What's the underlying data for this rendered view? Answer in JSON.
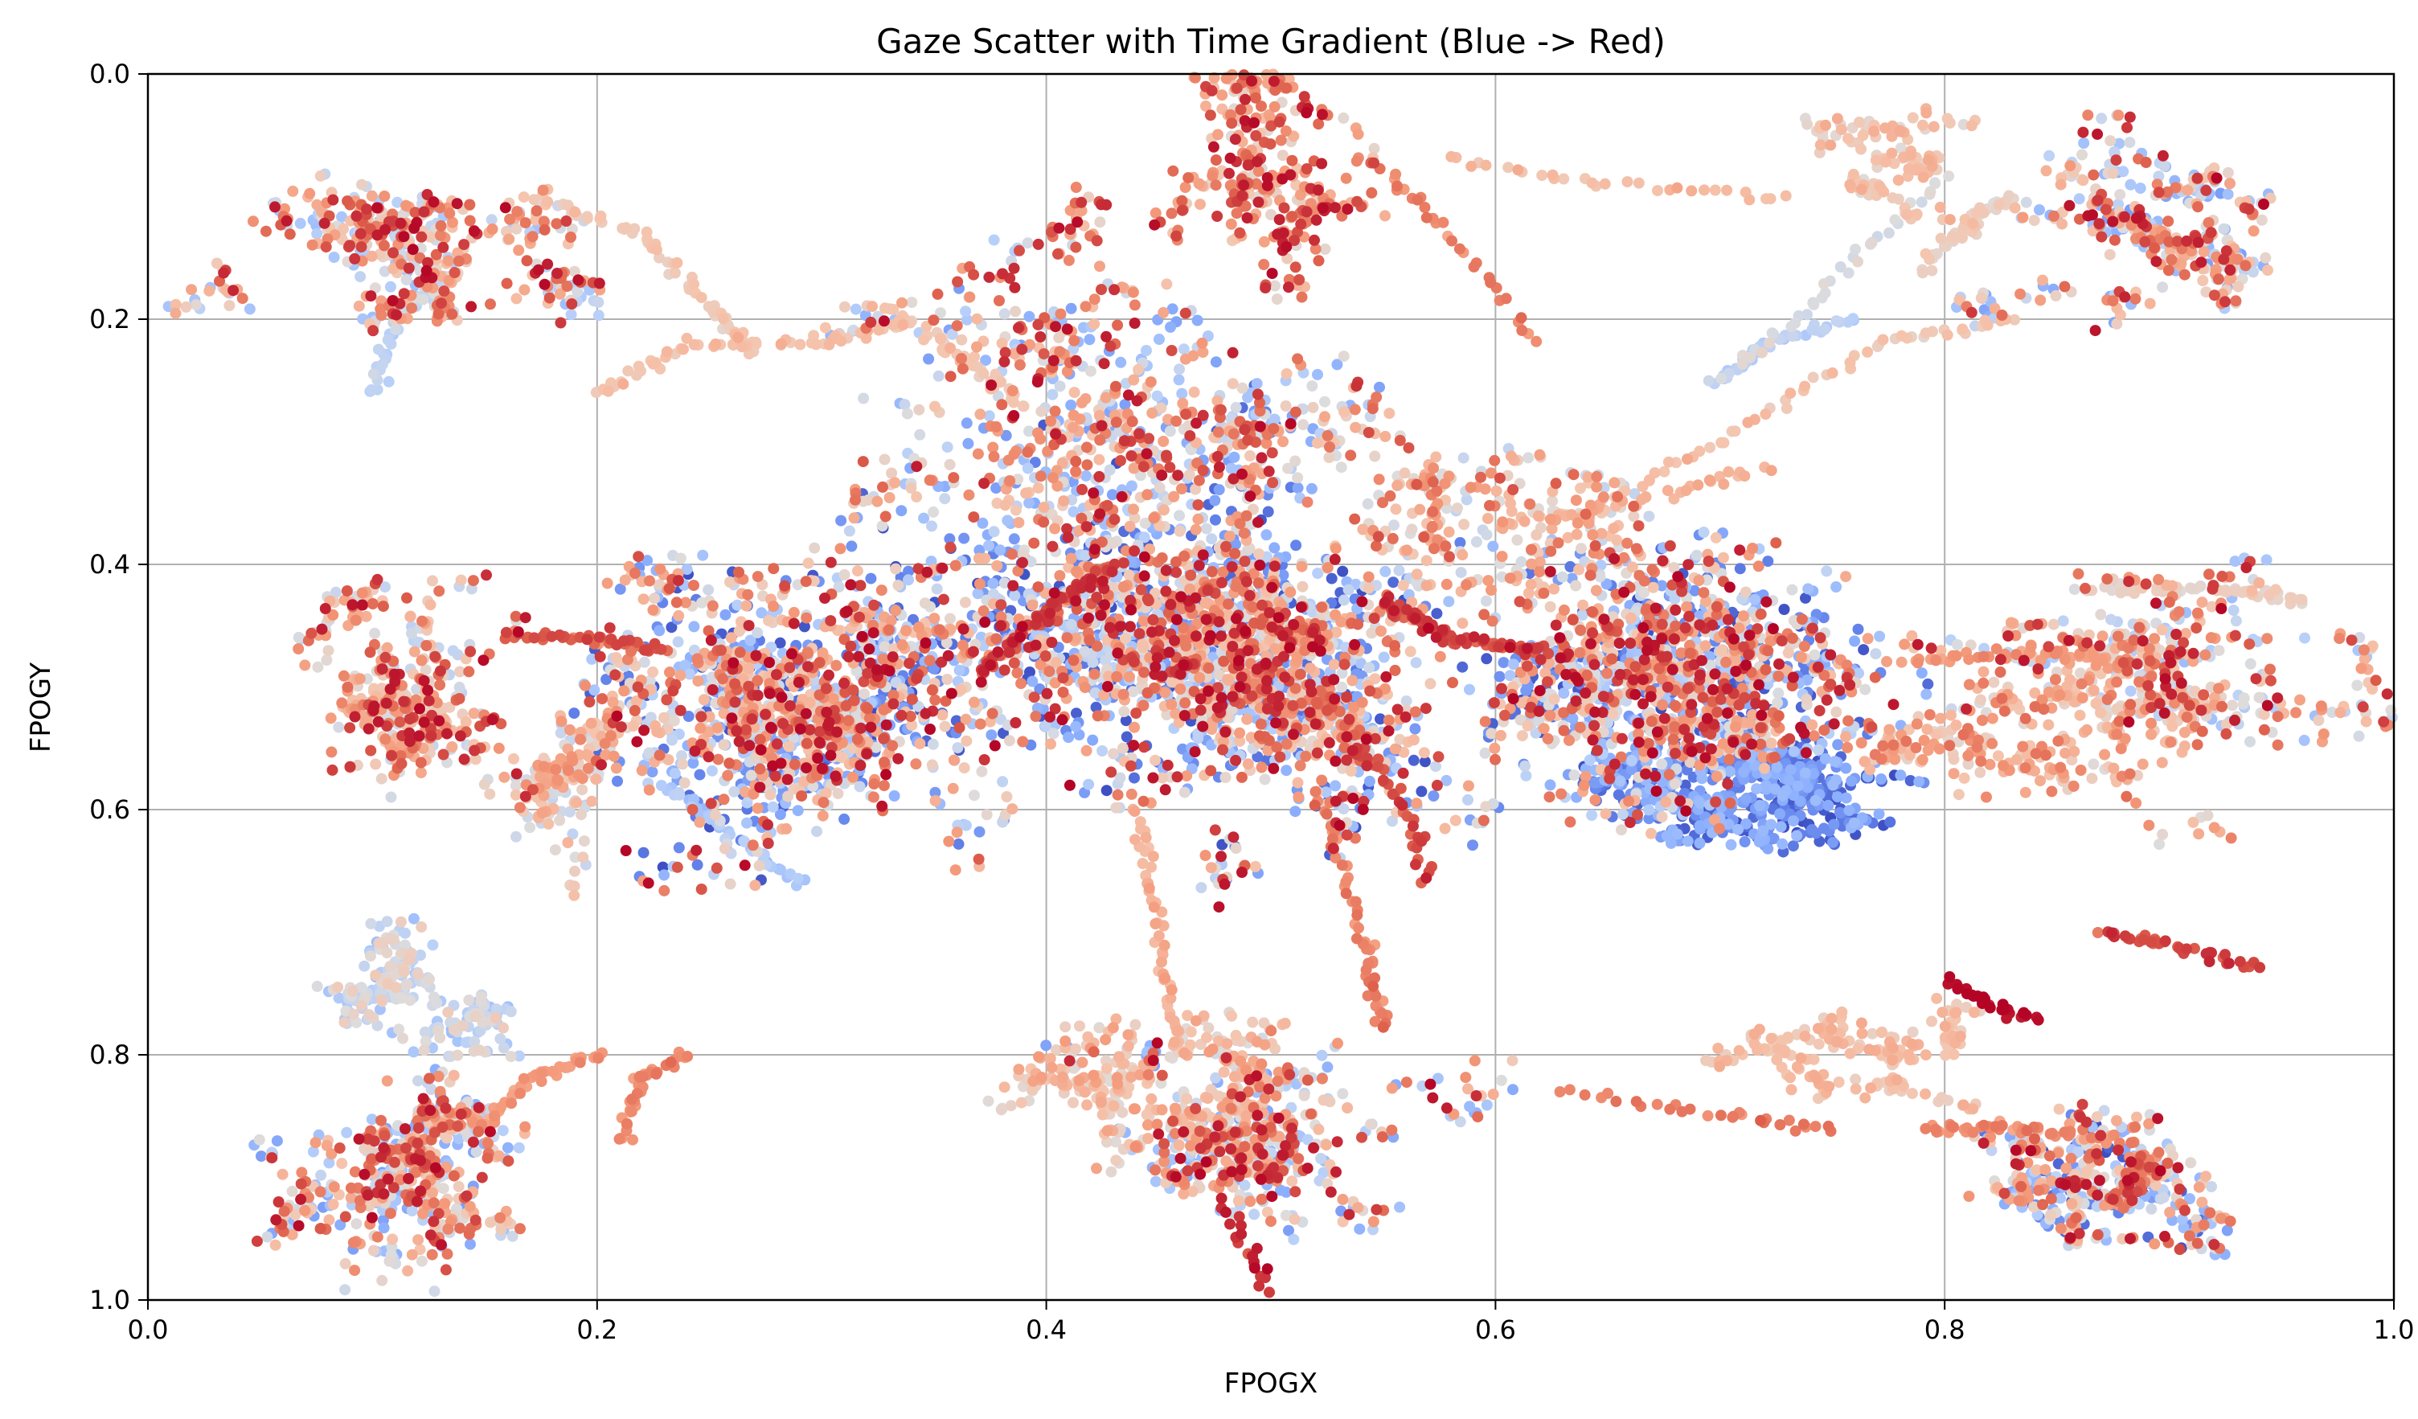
{
  "chart_data": {
    "type": "scatter",
    "title": "Gaze Scatter with Time Gradient (Blue -> Red)",
    "xlabel": "FPOGX",
    "ylabel": "FPOGY",
    "xlim": [
      0.0,
      1.0
    ],
    "ylim": [
      0.0,
      1.0
    ],
    "y_inverted": true,
    "grid": true,
    "colormap": "coolwarm",
    "xticks": [
      "0.0",
      "0.2",
      "0.4",
      "0.6",
      "0.8",
      "1.0"
    ],
    "yticks": [
      "0.0",
      "0.2",
      "0.4",
      "0.6",
      "0.8",
      "1.0"
    ],
    "colors": {
      "early": "#3b4cc0",
      "middle": "#dddcdc",
      "late": "#b40426",
      "grid": "#b0b0b0"
    },
    "clusters": [
      {
        "x": 0.12,
        "y": 0.14,
        "sx": 0.035,
        "sy": 0.04,
        "n": 420,
        "t": [
          0.3,
          1.0
        ]
      },
      {
        "x": 0.49,
        "y": 0.08,
        "sx": 0.03,
        "sy": 0.05,
        "n": 380,
        "t": [
          0.5,
          1.0
        ]
      },
      {
        "x": 0.89,
        "y": 0.13,
        "sx": 0.03,
        "sy": 0.04,
        "n": 360,
        "t": [
          0.2,
          1.0
        ]
      },
      {
        "x": 0.11,
        "y": 0.5,
        "sx": 0.03,
        "sy": 0.05,
        "n": 380,
        "t": [
          0.4,
          1.0
        ]
      },
      {
        "x": 0.29,
        "y": 0.52,
        "sx": 0.045,
        "sy": 0.06,
        "n": 1400,
        "t": [
          0.0,
          1.0
        ]
      },
      {
        "x": 0.43,
        "y": 0.45,
        "sx": 0.05,
        "sy": 0.07,
        "n": 1100,
        "t": [
          0.0,
          1.0
        ]
      },
      {
        "x": 0.5,
        "y": 0.49,
        "sx": 0.035,
        "sy": 0.06,
        "n": 1200,
        "t": [
          0.0,
          1.0
        ]
      },
      {
        "x": 0.69,
        "y": 0.49,
        "sx": 0.05,
        "sy": 0.05,
        "n": 1400,
        "t": [
          0.0,
          1.0
        ]
      },
      {
        "x": 0.9,
        "y": 0.49,
        "sx": 0.04,
        "sy": 0.04,
        "n": 420,
        "t": [
          0.3,
          1.0
        ]
      },
      {
        "x": 0.12,
        "y": 0.89,
        "sx": 0.03,
        "sy": 0.05,
        "n": 520,
        "t": [
          0.2,
          1.0
        ]
      },
      {
        "x": 0.49,
        "y": 0.86,
        "sx": 0.04,
        "sy": 0.04,
        "n": 500,
        "t": [
          0.2,
          1.0
        ]
      },
      {
        "x": 0.88,
        "y": 0.89,
        "sx": 0.04,
        "sy": 0.03,
        "n": 460,
        "t": [
          0.0,
          1.0
        ]
      },
      {
        "x": 0.44,
        "y": 0.28,
        "sx": 0.06,
        "sy": 0.06,
        "n": 650,
        "t": [
          0.2,
          1.0
        ]
      },
      {
        "x": 0.18,
        "y": 0.6,
        "sx": 0.02,
        "sy": 0.05,
        "n": 160,
        "t": [
          0.4,
          0.8
        ]
      },
      {
        "x": 0.12,
        "y": 0.78,
        "sx": 0.03,
        "sy": 0.04,
        "n": 220,
        "t": [
          0.3,
          0.6
        ]
      },
      {
        "x": 0.76,
        "y": 0.08,
        "sx": 0.025,
        "sy": 0.03,
        "n": 140,
        "t": [
          0.5,
          0.7
        ]
      },
      {
        "x": 0.45,
        "y": 0.83,
        "sx": 0.04,
        "sy": 0.04,
        "n": 260,
        "t": [
          0.5,
          0.75
        ]
      },
      {
        "x": 0.77,
        "y": 0.81,
        "sx": 0.03,
        "sy": 0.03,
        "n": 180,
        "t": [
          0.55,
          0.7
        ]
      },
      {
        "x": 0.82,
        "y": 0.55,
        "sx": 0.04,
        "sy": 0.04,
        "n": 260,
        "t": [
          0.5,
          0.85
        ]
      },
      {
        "x": 0.6,
        "y": 0.38,
        "sx": 0.04,
        "sy": 0.05,
        "n": 300,
        "t": [
          0.4,
          0.9
        ]
      },
      {
        "x": 0.71,
        "y": 0.58,
        "sx": 0.04,
        "sy": 0.025,
        "n": 500,
        "t": [
          0.0,
          0.3
        ]
      }
    ],
    "trails": [
      {
        "points": [
          [
            0.17,
            0.1
          ],
          [
            0.22,
            0.13
          ],
          [
            0.25,
            0.19
          ],
          [
            0.27,
            0.23
          ]
        ],
        "n": 60,
        "t": 0.6
      },
      {
        "points": [
          [
            0.55,
            0.08
          ],
          [
            0.58,
            0.13
          ],
          [
            0.62,
            0.22
          ]
        ],
        "n": 30,
        "t": 0.8
      },
      {
        "points": [
          [
            0.58,
            0.07
          ],
          [
            0.65,
            0.09
          ],
          [
            0.73,
            0.1
          ]
        ],
        "n": 30,
        "t": 0.65
      },
      {
        "points": [
          [
            0.8,
            0.08
          ],
          [
            0.75,
            0.17
          ],
          [
            0.7,
            0.25
          ]
        ],
        "n": 40,
        "t": 0.5
      },
      {
        "points": [
          [
            0.83,
            0.2
          ],
          [
            0.77,
            0.22
          ],
          [
            0.7,
            0.3
          ],
          [
            0.64,
            0.36
          ]
        ],
        "n": 60,
        "t": 0.62
      },
      {
        "points": [
          [
            0.6,
            0.37
          ],
          [
            0.66,
            0.35
          ],
          [
            0.72,
            0.32
          ]
        ],
        "n": 40,
        "t": 0.68
      },
      {
        "points": [
          [
            0.33,
            0.19
          ],
          [
            0.36,
            0.23
          ],
          [
            0.39,
            0.27
          ]
        ],
        "n": 40,
        "t": 0.6
      },
      {
        "points": [
          [
            0.2,
            0.26
          ],
          [
            0.24,
            0.22
          ],
          [
            0.3,
            0.22
          ],
          [
            0.34,
            0.2
          ]
        ],
        "n": 60,
        "t": 0.62
      },
      {
        "points": [
          [
            0.54,
            0.55
          ],
          [
            0.56,
            0.6
          ],
          [
            0.57,
            0.66
          ]
        ],
        "n": 30,
        "t": 0.9
      },
      {
        "points": [
          [
            0.44,
            0.6
          ],
          [
            0.45,
            0.7
          ],
          [
            0.46,
            0.8
          ]
        ],
        "n": 50,
        "t": 0.68
      },
      {
        "points": [
          [
            0.52,
            0.58
          ],
          [
            0.54,
            0.7
          ],
          [
            0.55,
            0.78
          ]
        ],
        "n": 50,
        "t": 0.8
      },
      {
        "points": [
          [
            0.63,
            0.83
          ],
          [
            0.7,
            0.85
          ],
          [
            0.75,
            0.86
          ]
        ],
        "n": 30,
        "t": 0.82
      },
      {
        "points": [
          [
            0.79,
            0.86
          ],
          [
            0.83,
            0.86
          ],
          [
            0.88,
            0.87
          ]
        ],
        "n": 40,
        "t": 0.8
      },
      {
        "points": [
          [
            0.87,
            0.7
          ],
          [
            0.9,
            0.71
          ],
          [
            0.94,
            0.73
          ]
        ],
        "n": 40,
        "t": 0.9
      },
      {
        "points": [
          [
            0.8,
            0.74
          ],
          [
            0.82,
            0.76
          ],
          [
            0.84,
            0.77
          ]
        ],
        "n": 30,
        "t": 1.0
      },
      {
        "points": [
          [
            0.86,
            0.42
          ],
          [
            0.92,
            0.42
          ],
          [
            0.96,
            0.43
          ]
        ],
        "n": 50,
        "t": 0.55
      },
      {
        "points": [
          [
            0.78,
            0.48
          ],
          [
            0.84,
            0.47
          ],
          [
            0.88,
            0.48
          ]
        ],
        "n": 50,
        "t": 0.75
      },
      {
        "points": [
          [
            0.16,
            0.46
          ],
          [
            0.2,
            0.46
          ],
          [
            0.23,
            0.47
          ]
        ],
        "n": 40,
        "t": 0.88
      },
      {
        "points": [
          [
            0.21,
            0.87
          ],
          [
            0.22,
            0.82
          ],
          [
            0.24,
            0.8
          ]
        ],
        "n": 40,
        "t": 0.78
      },
      {
        "points": [
          [
            0.15,
            0.86
          ],
          [
            0.17,
            0.82
          ],
          [
            0.2,
            0.8
          ]
        ],
        "n": 40,
        "t": 0.75
      },
      {
        "points": [
          [
            0.1,
            0.26
          ],
          [
            0.11,
            0.2
          ],
          [
            0.13,
            0.17
          ]
        ],
        "n": 40,
        "t": 0.4
      },
      {
        "points": [
          [
            0.23,
            0.58
          ],
          [
            0.26,
            0.62
          ],
          [
            0.29,
            0.66
          ]
        ],
        "n": 40,
        "t": 0.35
      },
      {
        "points": [
          [
            0.7,
            0.25
          ],
          [
            0.72,
            0.22
          ],
          [
            0.76,
            0.2
          ]
        ],
        "n": 40,
        "t": 0.38
      },
      {
        "points": [
          [
            0.79,
            0.16
          ],
          [
            0.81,
            0.12
          ],
          [
            0.83,
            0.1
          ]
        ],
        "n": 40,
        "t": 0.55
      },
      {
        "points": [
          [
            0.48,
            0.92
          ],
          [
            0.49,
            0.96
          ],
          [
            0.5,
            0.99
          ]
        ],
        "n": 20,
        "t": 0.95
      },
      {
        "points": [
          [
            0.37,
            0.49
          ],
          [
            0.4,
            0.44
          ],
          [
            0.43,
            0.4
          ]
        ],
        "n": 70,
        "t": 0.92
      },
      {
        "points": [
          [
            0.55,
            0.43
          ],
          [
            0.58,
            0.46
          ],
          [
            0.62,
            0.47
          ]
        ],
        "n": 70,
        "t": 0.92
      }
    ]
  }
}
